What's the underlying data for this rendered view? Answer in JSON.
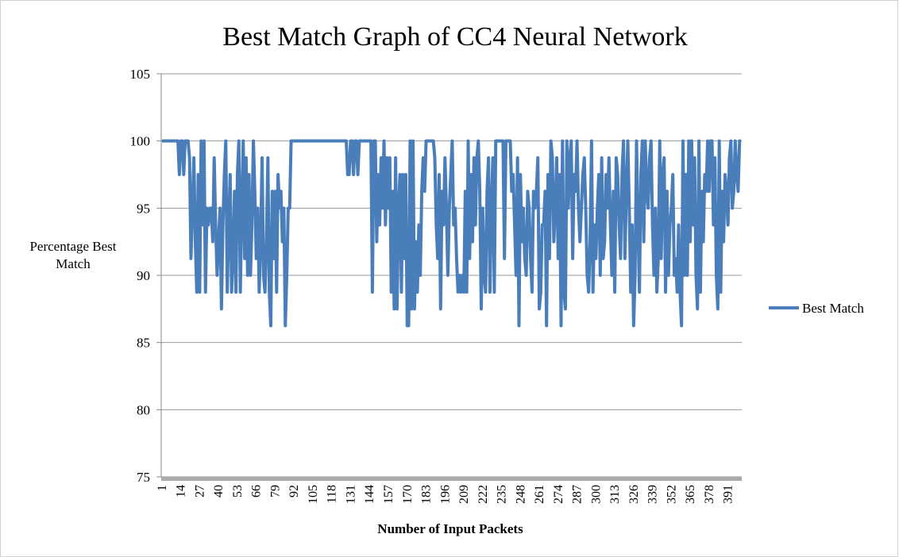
{
  "chart_data": {
    "type": "line",
    "title": "Best Match Graph of CC4 Neural Network",
    "x_label": "Number of Input Packets",
    "y_label": "Percentage Best Match",
    "ylim": [
      75,
      105
    ],
    "yticks": [
      75,
      80,
      85,
      90,
      95,
      100,
      105
    ],
    "grid": true,
    "legend": "right",
    "categories": [
      "1",
      null,
      null,
      null,
      null,
      null,
      null,
      null,
      null,
      null,
      null,
      null,
      null,
      "14",
      null,
      null,
      null,
      null,
      null,
      null,
      null,
      null,
      null,
      null,
      null,
      null,
      "27",
      null,
      null,
      null,
      null,
      null,
      null,
      null,
      null,
      null,
      null,
      null,
      null,
      "40",
      null,
      null,
      null,
      null,
      null,
      null,
      null,
      null,
      null,
      null,
      null,
      null,
      "53",
      null,
      null,
      null,
      null,
      null,
      null,
      null,
      null,
      null,
      null,
      null,
      null,
      "66",
      null,
      null,
      null,
      null,
      null,
      null,
      null,
      null,
      null,
      null,
      null,
      null,
      "79",
      null,
      null,
      null,
      null,
      null,
      null,
      null,
      null,
      null,
      null,
      null,
      null,
      "92",
      null,
      null,
      null,
      null,
      null,
      null,
      null,
      null,
      null,
      null,
      null,
      null,
      "105",
      null,
      null,
      null,
      null,
      null,
      null,
      null,
      null,
      null,
      null,
      null,
      null,
      "118",
      null,
      null,
      null,
      null,
      null,
      null,
      null,
      null,
      null,
      null,
      null,
      null,
      "131",
      null,
      null,
      null,
      null,
      null,
      null,
      null,
      null,
      null,
      null,
      null,
      null,
      "144",
      null,
      null,
      null,
      null,
      null,
      null,
      null,
      null,
      null,
      null,
      null,
      null,
      "157",
      null,
      null,
      null,
      null,
      null,
      null,
      null,
      null,
      null,
      null,
      null,
      null,
      "170",
      null,
      null,
      null,
      null,
      null,
      null,
      null,
      null,
      null,
      null,
      null,
      null,
      "183",
      null,
      null,
      null,
      null,
      null,
      null,
      null,
      null,
      null,
      null,
      null,
      null,
      "196",
      null,
      null,
      null,
      null,
      null,
      null,
      null,
      null,
      null,
      null,
      null,
      null,
      "209",
      null,
      null,
      null,
      null,
      null,
      null,
      null,
      null,
      null,
      null,
      null,
      null,
      "222",
      null,
      null,
      null,
      null,
      null,
      null,
      null,
      null,
      null,
      null,
      null,
      null,
      "235",
      null,
      null,
      null,
      null,
      null,
      null,
      null,
      null,
      null,
      null,
      null,
      null,
      "248",
      null,
      null,
      null,
      null,
      null,
      null,
      null,
      null,
      null,
      null,
      null,
      null,
      "261",
      null,
      null,
      null,
      null,
      null,
      null,
      null,
      null,
      null,
      null,
      null,
      null,
      "274",
      null,
      null,
      null,
      null,
      null,
      null,
      null,
      null,
      null,
      null,
      null,
      null,
      "287",
      null,
      null,
      null,
      null,
      null,
      null,
      null,
      null,
      null,
      null,
      null,
      null,
      "300",
      null,
      null,
      null,
      null,
      null,
      null,
      null,
      null,
      null,
      null,
      null,
      null,
      "313",
      null,
      null,
      null,
      null,
      null,
      null,
      null,
      null,
      null,
      null,
      null,
      null,
      "326",
      null,
      null,
      null,
      null,
      null,
      null,
      null,
      null,
      null,
      null,
      null,
      null,
      "339",
      null,
      null,
      null,
      null,
      null,
      null,
      null,
      null,
      null,
      null,
      null,
      null,
      "352",
      null,
      null,
      null,
      null,
      null,
      null,
      null,
      null,
      null,
      null,
      null,
      null,
      "365",
      null,
      null,
      null,
      null,
      null,
      null,
      null,
      null,
      null,
      null,
      null,
      null,
      "378",
      null,
      null,
      null,
      null,
      null,
      null,
      null,
      null,
      null,
      null,
      null,
      null,
      "391",
      null,
      null,
      null,
      null,
      null,
      null,
      null,
      null,
      null
    ],
    "series": [
      {
        "name": "Best Match",
        "color": "#4a7ebb",
        "values": [
          100,
          100,
          100,
          100,
          100,
          100,
          100,
          100,
          100,
          100,
          100,
          100,
          97.5,
          100,
          100,
          97.5,
          100,
          100,
          100,
          98.75,
          91.25,
          95,
          98.75,
          92.5,
          88.75,
          97.5,
          88.75,
          100,
          93.75,
          100,
          88.75,
          95,
          93.75,
          95,
          95,
          92.5,
          98.75,
          93.75,
          90,
          92.5,
          95,
          87.5,
          93.75,
          97.5,
          100,
          88.75,
          93.75,
          97.5,
          88.75,
          91.25,
          96.25,
          88.75,
          97.5,
          100,
          88.75,
          95,
          100,
          91.25,
          98.75,
          90,
          97.5,
          90,
          93.75,
          100,
          96.25,
          91.25,
          95,
          88.75,
          92.5,
          98.75,
          90,
          88.75,
          92.5,
          98.75,
          88.75,
          86.25,
          96.25,
          91.25,
          96.25,
          88.75,
          97.5,
          95,
          96.25,
          92.5,
          95,
          86.25,
          90,
          95,
          95,
          100,
          100,
          100,
          100,
          100,
          100,
          100,
          100,
          100,
          100,
          100,
          100,
          100,
          100,
          100,
          100,
          100,
          100,
          100,
          100,
          100,
          100,
          100,
          100,
          100,
          100,
          100,
          100,
          100,
          100,
          100,
          100,
          100,
          100,
          100,
          100,
          100,
          100,
          100,
          97.5,
          97.5,
          100,
          100,
          97.5,
          100,
          100,
          97.5,
          100,
          100,
          100,
          100,
          100,
          100,
          100,
          100,
          100,
          88.75,
          100,
          100,
          92.5,
          97.5,
          93.75,
          98.75,
          95,
          100,
          93.75,
          98.75,
          95,
          98.75,
          88.75,
          96.25,
          87.5,
          98.75,
          87.5,
          95,
          97.5,
          88.75,
          97.5,
          91.25,
          97.5,
          86.25,
          86.25,
          100,
          87.5,
          100,
          87.5,
          92.5,
          88.75,
          93.75,
          90,
          96.25,
          98.75,
          96.25,
          100,
          100,
          100,
          100,
          100,
          100,
          98.75,
          93.75,
          91.25,
          97.5,
          87.5,
          96.25,
          93.75,
          98.75,
          95,
          90,
          95,
          97.5,
          100,
          93.75,
          95,
          91.25,
          88.75,
          90,
          88.75,
          90,
          88.75,
          96.25,
          88.75,
          100,
          91.25,
          97.5,
          92.5,
          98.75,
          93.75,
          98.75,
          100,
          96.25,
          87.5,
          95,
          90,
          88.75,
          96.25,
          98.75,
          88.75,
          95,
          98.75,
          88.75,
          100,
          100,
          100,
          100,
          100,
          100,
          91.25,
          100,
          100,
          100,
          100,
          96.25,
          97.5,
          93.75,
          90,
          98.75,
          86.25,
          97.5,
          92.5,
          95,
          91.25,
          90,
          96.25,
          95,
          91.25,
          88.75,
          96.25,
          95,
          96.25,
          98.75,
          87.5,
          88.75,
          93.75,
          93.75,
          96.25,
          86.25,
          97.5,
          91.25,
          100,
          98.75,
          92.5,
          95,
          98.75,
          91.25,
          97.5,
          86.25,
          100,
          88.75,
          87.5,
          100,
          95,
          98.75,
          100,
          91.25,
          97.5,
          96.25,
          100,
          95,
          92.5,
          95,
          97.5,
          98.75,
          95,
          90,
          88.75,
          92.5,
          100,
          88.75,
          93.75,
          91.25,
          95,
          97.5,
          90,
          98.75,
          91.25,
          92.5,
          97.5,
          95,
          98.75,
          93.75,
          90,
          96.25,
          88.75,
          98.75,
          97.5,
          93.75,
          91.25,
          97.5,
          100,
          91.25,
          96.25,
          100,
          95,
          88.75,
          93.75,
          86.25,
          90,
          100,
          93.75,
          88.75,
          97.5,
          100,
          92.5,
          100,
          96.25,
          95,
          98.75,
          100,
          93.75,
          90,
          95,
          88.75,
          91.25,
          100,
          91.25,
          97.5,
          98.75,
          88.75,
          96.25,
          90,
          93.75,
          95,
          97.5,
          90,
          91.25,
          88.75,
          93.75,
          88.75,
          86.25,
          100,
          90,
          97.5,
          90,
          100,
          92.5,
          100,
          93.75,
          98.75,
          90,
          87.5,
          100,
          88.75,
          96.25,
          92.5,
          97.5,
          96.25,
          100,
          96.25,
          100,
          100,
          93.75,
          98.75,
          90,
          87.5,
          100,
          88.75,
          96.25,
          92.5,
          97.5,
          96.25,
          93.75,
          98.75,
          100,
          95,
          96.25,
          100,
          97.5,
          96.25,
          100,
          100
        ]
      }
    ]
  }
}
